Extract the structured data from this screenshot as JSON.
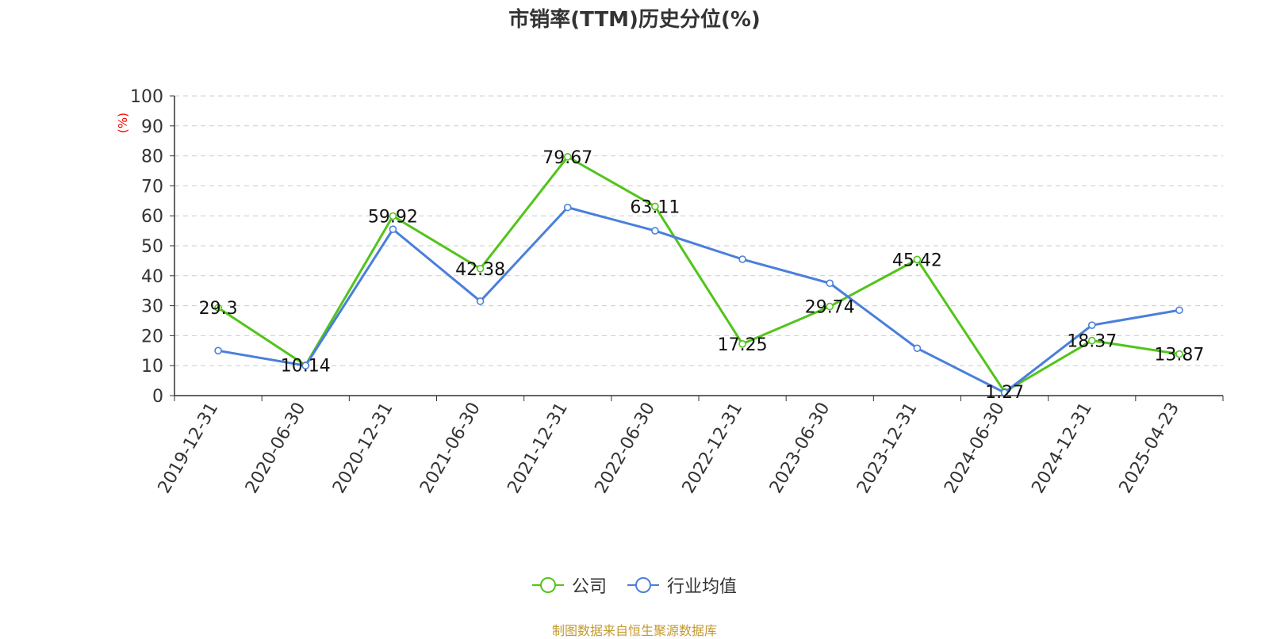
{
  "colors": {
    "company": "#52c41a",
    "industry": "#4a7fdb",
    "grid": "#cccccc",
    "axis": "#333333",
    "unit": "#ff0000",
    "source": "#c49a2e"
  },
  "legend": {
    "company": "公司",
    "industry": "行业均值"
  },
  "source_note": "制图数据来自恒生聚源数据库",
  "chart_data": {
    "type": "line",
    "title": "市销率(TTM)历史分位(%)",
    "ylabel": "(%)",
    "ylim": [
      0,
      100
    ],
    "yticks": [
      0,
      10,
      20,
      30,
      40,
      50,
      60,
      70,
      80,
      90,
      100
    ],
    "grid": true,
    "legend_position": "bottom",
    "categories": [
      "2019-12-31",
      "2020-06-30",
      "2020-12-31",
      "2021-06-30",
      "2021-12-31",
      "2022-06-30",
      "2022-12-31",
      "2023-06-30",
      "2023-12-31",
      "2024-06-30",
      "2024-12-31",
      "2025-04-23"
    ],
    "series": [
      {
        "name": "公司",
        "values": [
          29.3,
          10.14,
          59.92,
          42.38,
          79.67,
          63.11,
          17.25,
          29.74,
          45.42,
          1.27,
          18.37,
          13.87
        ],
        "labels": [
          "29.3",
          "10.14",
          "59.92",
          "42.38",
          "79.67",
          "63.11",
          "17.25",
          "29.74",
          "45.42",
          "1.27",
          "18.37",
          "13.87"
        ]
      },
      {
        "name": "行业均值",
        "values": [
          15.0,
          10.0,
          55.5,
          31.5,
          62.8,
          55.0,
          45.5,
          37.5,
          15.8,
          1.0,
          23.5,
          28.5
        ]
      }
    ]
  }
}
